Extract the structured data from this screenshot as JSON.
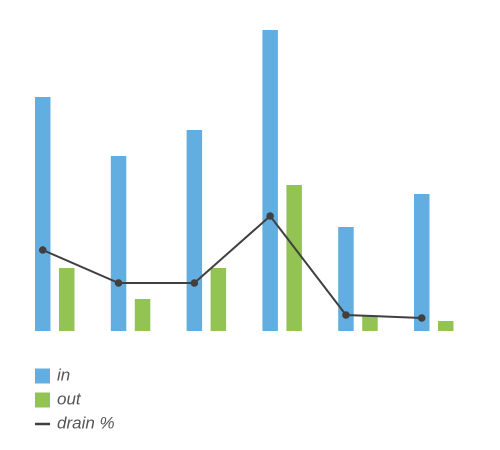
{
  "chart_data": {
    "type": "bar",
    "categories": [
      null,
      null,
      null,
      null,
      null,
      null
    ],
    "series": [
      {
        "name": "in",
        "type": "bar",
        "color": "#62aee0",
        "values": [
          234,
          175,
          201,
          301,
          104,
          137
        ]
      },
      {
        "name": "out",
        "type": "bar",
        "color": "#92c353",
        "values": [
          63,
          32,
          63,
          146,
          15,
          10
        ]
      },
      {
        "name": "drain %",
        "type": "line",
        "color": "#404040",
        "values": [
          81,
          48,
          48,
          115,
          16,
          13
        ]
      }
    ],
    "ylim": [
      0,
      301
    ]
  }
}
